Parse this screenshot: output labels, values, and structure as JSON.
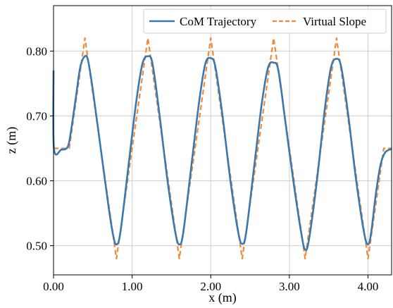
{
  "chart_data": {
    "type": "line",
    "xlabel": "x (m)",
    "ylabel": "z (m)",
    "xlim": [
      0.0,
      4.3
    ],
    "ylim": [
      0.455,
      0.87
    ],
    "grid": true,
    "legend_position": "top-right",
    "x_ticks": [
      {
        "value": 0.0,
        "label": "0.00"
      },
      {
        "value": 1.0,
        "label": "1.00"
      },
      {
        "value": 2.0,
        "label": "2.00"
      },
      {
        "value": 3.0,
        "label": "3.00"
      },
      {
        "value": 4.0,
        "label": "4.00"
      }
    ],
    "y_ticks": [
      {
        "value": 0.5,
        "label": "0.50"
      },
      {
        "value": 0.6,
        "label": "0.60"
      },
      {
        "value": 0.7,
        "label": "0.70"
      },
      {
        "value": 0.8,
        "label": "0.80"
      }
    ],
    "series": [
      {
        "name": "CoM Trajectory",
        "color": "#3a78b0",
        "style": "solid",
        "points": [
          [
            0.0,
            0.77
          ],
          [
            0.005,
            0.65
          ],
          [
            0.1,
            0.648
          ],
          [
            0.18,
            0.652
          ],
          [
            0.22,
            0.675
          ],
          [
            0.28,
            0.725
          ],
          [
            0.34,
            0.775
          ],
          [
            0.4,
            0.792
          ],
          [
            0.44,
            0.785
          ],
          [
            0.5,
            0.74
          ],
          [
            0.6,
            0.65
          ],
          [
            0.7,
            0.56
          ],
          [
            0.76,
            0.515
          ],
          [
            0.8,
            0.502
          ],
          [
            0.85,
            0.52
          ],
          [
            0.95,
            0.62
          ],
          [
            1.05,
            0.72
          ],
          [
            1.13,
            0.78
          ],
          [
            1.2,
            0.792
          ],
          [
            1.26,
            0.78
          ],
          [
            1.35,
            0.7
          ],
          [
            1.45,
            0.6
          ],
          [
            1.55,
            0.52
          ],
          [
            1.6,
            0.502
          ],
          [
            1.65,
            0.52
          ],
          [
            1.75,
            0.62
          ],
          [
            1.85,
            0.72
          ],
          [
            1.93,
            0.78
          ],
          [
            2.0,
            0.789
          ],
          [
            2.06,
            0.775
          ],
          [
            2.15,
            0.7
          ],
          [
            2.25,
            0.6
          ],
          [
            2.35,
            0.52
          ],
          [
            2.4,
            0.503
          ],
          [
            2.45,
            0.52
          ],
          [
            2.55,
            0.62
          ],
          [
            2.65,
            0.72
          ],
          [
            2.73,
            0.775
          ],
          [
            2.8,
            0.782
          ],
          [
            2.86,
            0.77
          ],
          [
            2.95,
            0.69
          ],
          [
            3.05,
            0.6
          ],
          [
            3.15,
            0.52
          ],
          [
            3.2,
            0.494
          ],
          [
            3.25,
            0.51
          ],
          [
            3.35,
            0.6
          ],
          [
            3.45,
            0.71
          ],
          [
            3.53,
            0.775
          ],
          [
            3.6,
            0.788
          ],
          [
            3.66,
            0.775
          ],
          [
            3.75,
            0.7
          ],
          [
            3.85,
            0.6
          ],
          [
            3.95,
            0.52
          ],
          [
            4.0,
            0.502
          ],
          [
            4.04,
            0.52
          ],
          [
            4.1,
            0.58
          ],
          [
            4.16,
            0.625
          ],
          [
            4.22,
            0.644
          ],
          [
            4.3,
            0.649
          ]
        ]
      },
      {
        "name": "Virtual Slope",
        "color": "#f08a3c",
        "style": "dashed",
        "points": [
          [
            0.0,
            0.65
          ],
          [
            0.2,
            0.65
          ],
          [
            0.4,
            0.82
          ],
          [
            0.8,
            0.48
          ],
          [
            1.2,
            0.82
          ],
          [
            1.6,
            0.48
          ],
          [
            2.0,
            0.82
          ],
          [
            2.4,
            0.48
          ],
          [
            2.8,
            0.82
          ],
          [
            3.2,
            0.48
          ],
          [
            3.6,
            0.82
          ],
          [
            4.0,
            0.48
          ],
          [
            4.2,
            0.65
          ],
          [
            4.3,
            0.65
          ]
        ]
      }
    ]
  }
}
